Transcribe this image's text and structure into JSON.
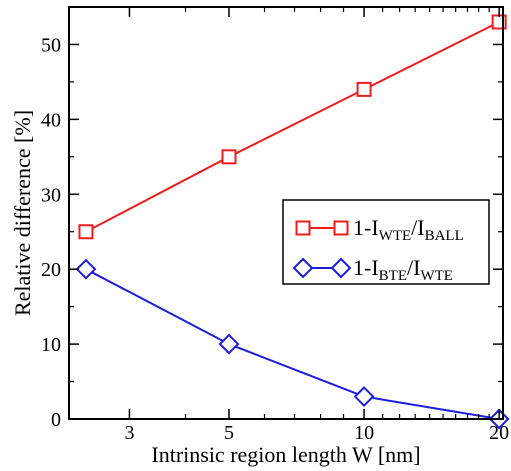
{
  "chart_data": {
    "type": "line",
    "title": "",
    "xlabel": "Intrinsic region length W [nm]",
    "ylabel": "Relative difference [%]",
    "xscale": "log",
    "xlim": [
      2.2,
      20.4
    ],
    "ylim": [
      0,
      55
    ],
    "xticks": [
      3,
      5,
      10,
      20
    ],
    "yticks": [
      0,
      10,
      20,
      30,
      40,
      50
    ],
    "grid": false,
    "legend_position": "right-middle",
    "series": [
      {
        "name": "1-I_WTE/I_BALL",
        "legend": {
          "main": "1-I",
          "sub1": "WTE",
          "mid": "/I",
          "sub2": "BALL"
        },
        "marker": "square",
        "color": "#ee1c1c",
        "x": [
          2.4,
          5,
          10,
          20
        ],
        "y": [
          25,
          35,
          44,
          53
        ]
      },
      {
        "name": "1-I_BTE/I_WTE",
        "legend": {
          "main": "1-I",
          "sub1": "BTE",
          "mid": "/I",
          "sub2": "WTE"
        },
        "marker": "diamond",
        "color": "#1c1ce0",
        "x": [
          2.4,
          5,
          10,
          20
        ],
        "y": [
          20,
          10,
          3,
          0
        ]
      }
    ]
  }
}
